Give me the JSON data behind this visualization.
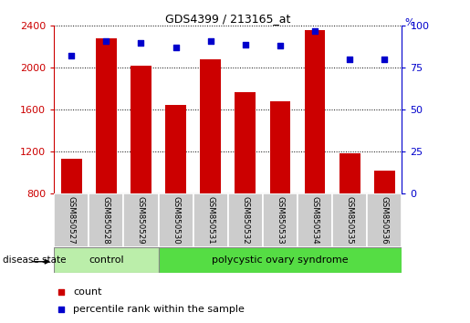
{
  "title": "GDS4399 / 213165_at",
  "samples": [
    "GSM850527",
    "GSM850528",
    "GSM850529",
    "GSM850530",
    "GSM850531",
    "GSM850532",
    "GSM850533",
    "GSM850534",
    "GSM850535",
    "GSM850536"
  ],
  "counts": [
    1130,
    2280,
    2020,
    1650,
    2080,
    1770,
    1680,
    2360,
    1190,
    1020
  ],
  "percentiles": [
    82,
    91,
    90,
    87,
    91,
    89,
    88,
    97,
    80,
    80
  ],
  "ymin": 800,
  "ymax": 2400,
  "yticks_left": [
    800,
    1200,
    1600,
    2000,
    2400
  ],
  "yticks_right": [
    0,
    25,
    50,
    75,
    100
  ],
  "bar_color": "#cc0000",
  "dot_color": "#0000cc",
  "control_samples": 3,
  "control_color": "#bbeeaa",
  "pcos_color": "#55dd44",
  "group_labels": [
    "control",
    "polycystic ovary syndrome"
  ],
  "disease_state_label": "disease state",
  "legend_count_label": "count",
  "legend_percentile_label": "percentile rank within the sample",
  "bar_bottom": 800,
  "sample_box_color": "#cccccc",
  "fig_width": 5.15,
  "fig_height": 3.54
}
